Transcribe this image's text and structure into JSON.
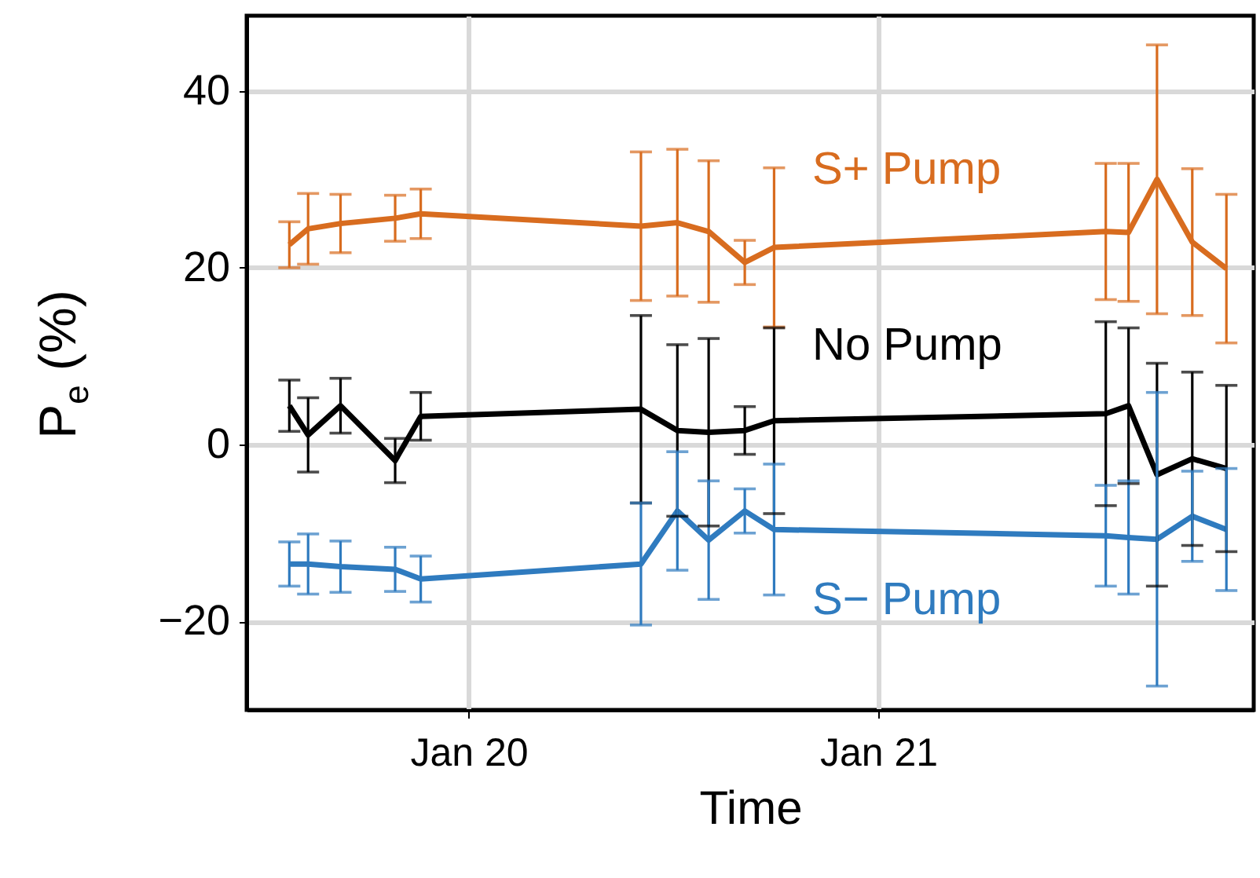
{
  "chart_data": {
    "type": "line",
    "xlabel": "Time",
    "ylabel": "P$_{e}$ (%)",
    "x": [
      "--01-19T13:30",
      "--01-19T14:36",
      "--01-19T16:30",
      "--01-19T19:42",
      "--01-19T21:12",
      "--01-20T10:06",
      "--01-20T12:14",
      "--01-20T14:04",
      "--01-20T16:11",
      "--01-20T17:54",
      "--01-21T13:20",
      "--01-21T14:40",
      "--01-21T16:20",
      "--01-21T18:24",
      "--01-21T20:24"
    ],
    "series": [
      {
        "name": "S+ Pump",
        "color": "#d86c1f",
        "values": [
          22.6,
          24.4,
          25.0,
          25.6,
          26.1,
          24.7,
          25.1,
          24.1,
          20.6,
          22.3,
          24.1,
          24.0,
          30.0,
          22.9,
          19.9
        ],
        "errors": [
          2.6,
          4,
          3.3,
          2.6,
          2.8,
          8.4,
          8.3,
          8,
          2.5,
          9,
          7.7,
          7.8,
          15.2,
          8.3,
          8.4
        ]
      },
      {
        "name": "No Pump",
        "color": "#000000",
        "values": [
          4.4,
          1.1,
          4.4,
          -1.8,
          3.2,
          4.0,
          1.6,
          1.4,
          1.6,
          2.7,
          3.5,
          4.4,
          -3.4,
          -1.6,
          -2.7
        ],
        "errors": [
          2.9,
          4.2,
          3.1,
          2.5,
          2.7,
          10.6,
          9.7,
          10.6,
          2.7,
          10.5,
          10.4,
          8.8,
          12.6,
          9.8,
          9.4
        ]
      },
      {
        "name": "S− Pump",
        "color": "#2f7bbf",
        "values": [
          -13.5,
          -13.5,
          -13.8,
          -14.1,
          -15.2,
          -13.5,
          -7.5,
          -10.8,
          -7.5,
          -9.6,
          -10.3,
          -10.5,
          -10.7,
          -8.1,
          -9.6
        ],
        "errors": [
          2.5,
          3.4,
          2.9,
          2.5,
          2.6,
          6.9,
          6.7,
          6.7,
          2.5,
          7.4,
          5.7,
          6.4,
          16.6,
          5.1,
          6.9
        ]
      }
    ],
    "xlim": [
      "--01-19T11:00",
      "--01-21T22:00"
    ],
    "xticks": [
      {
        "value": "--01-20",
        "label": "Jan 20"
      },
      {
        "value": "--01-21",
        "label": "Jan 21"
      }
    ],
    "ylim": [
      -30,
      48.5
    ],
    "yticks": [
      {
        "value": -20,
        "label": "−20"
      },
      0,
      20,
      40
    ],
    "grid": true,
    "line_style": "solid",
    "marker": "none"
  }
}
